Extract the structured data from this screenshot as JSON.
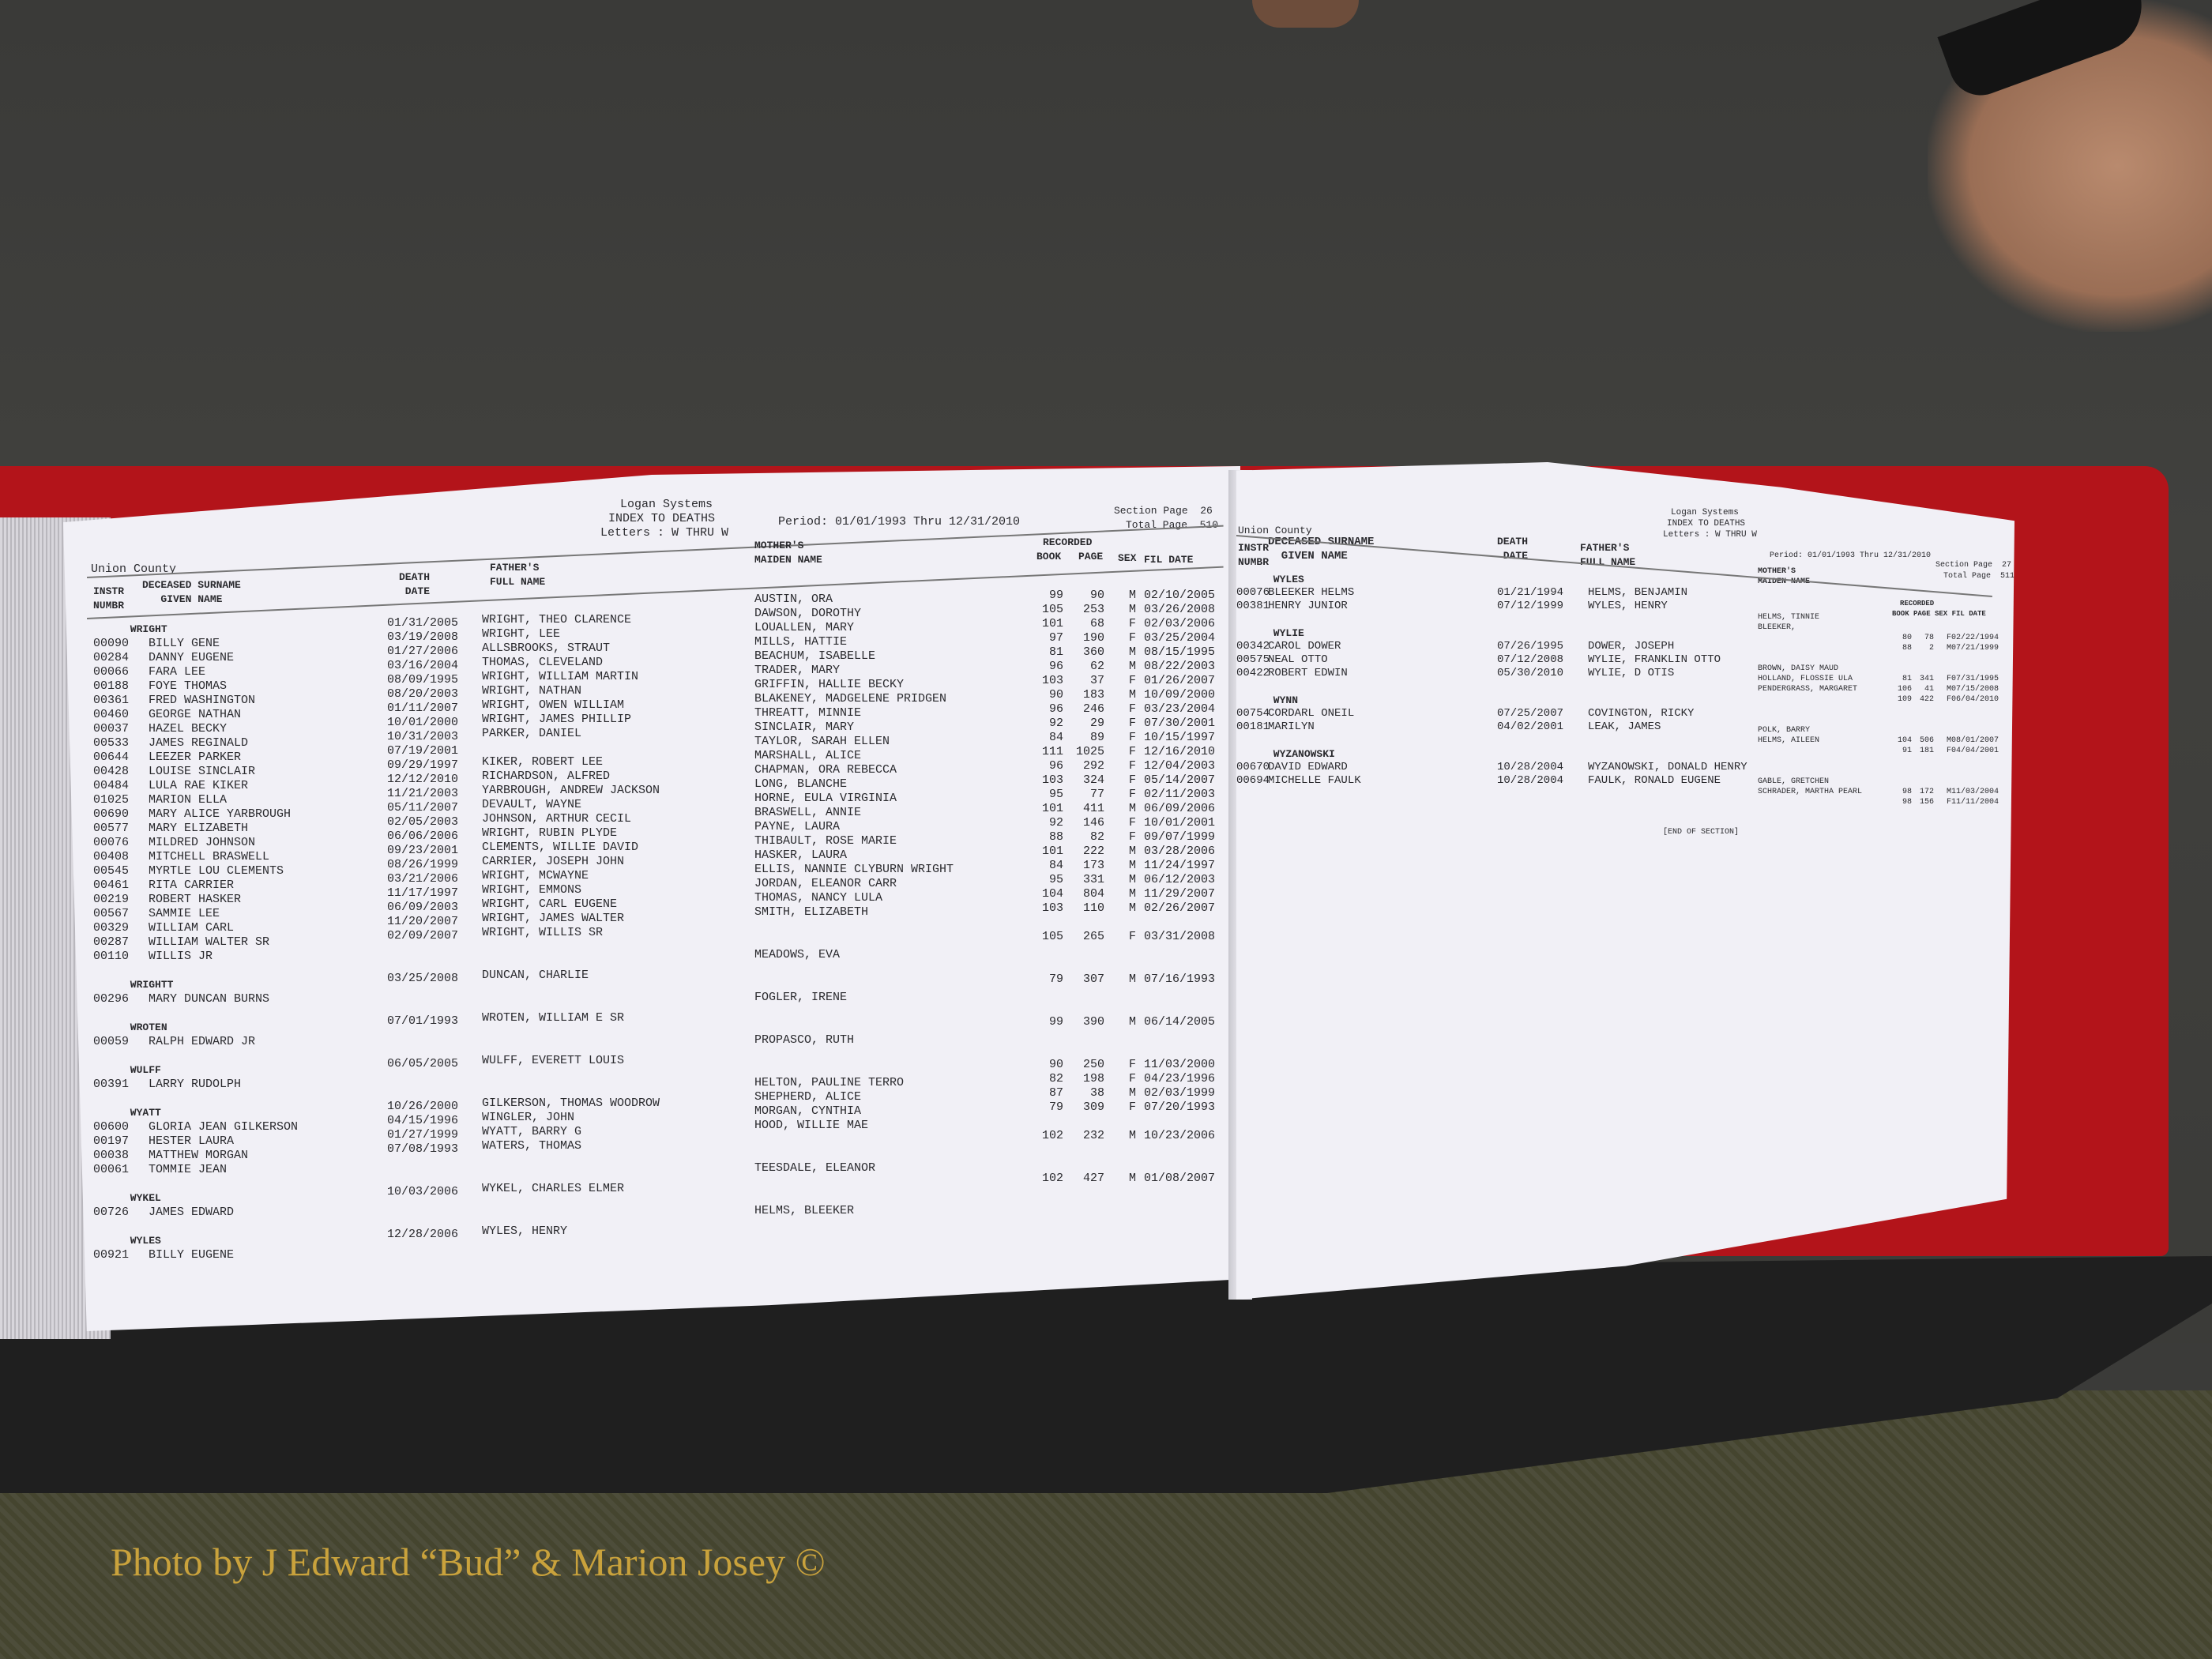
{
  "colors": {
    "binder": "#b3141a",
    "paper": "#f1f0f6",
    "caption": "#c9a23c"
  },
  "caption": "Photo by J Edward “Bud” & Marion Josey ©",
  "left_page": {
    "county": "Union County",
    "system": "Logan Systems",
    "title": "INDEX TO DEATHS",
    "letters": "Letters : W THRU W",
    "period": "Period: 01/01/1993 Thru 12/31/2010",
    "section_page": "Section Page  26",
    "total_page": "Total Page  510",
    "headers": {
      "instr": "INSTR\nNUMBR",
      "surname": "DECEASED SURNAME\n   GIVEN NAME",
      "death": "DEATH\n DATE",
      "father": "FATHER'S\nFULL NAME",
      "mother": "MOTHER'S\nMAIDEN NAME",
      "recorded": "RECORDED",
      "book": "BOOK",
      "page": "PAGE",
      "sex": "SEX",
      "fil_date": "FIL DATE"
    },
    "entries": [
      {
        "surname": "WRIGHT"
      },
      {
        "instr": "00090",
        "name": "BILLY GENE"
      },
      {
        "instr": "00284",
        "name": "DANNY EUGENE"
      },
      {
        "instr": "00066",
        "name": "FARA LEE"
      },
      {
        "instr": "00188",
        "name": "FOYE THOMAS"
      },
      {
        "instr": "00361",
        "name": "FRED WASHINGTON"
      },
      {
        "instr": "00460",
        "name": "GEORGE NATHAN"
      },
      {
        "instr": "00037",
        "name": "HAZEL BECKY"
      },
      {
        "instr": "00533",
        "name": "JAMES REGINALD"
      },
      {
        "instr": "00644",
        "name": "LEEZER PARKER"
      },
      {
        "instr": "00428",
        "name": "LOUISE SINCLAIR"
      },
      {
        "instr": "00484",
        "name": "LULA RAE KIKER"
      },
      {
        "instr": "01025",
        "name": "MARION ELLA"
      },
      {
        "instr": "00690",
        "name": "MARY ALICE YARBROUGH"
      },
      {
        "instr": "00577",
        "name": "MARY ELIZABETH"
      },
      {
        "instr": "00076",
        "name": "MILDRED JOHNSON"
      },
      {
        "instr": "00408",
        "name": "MITCHELL BRASWELL"
      },
      {
        "instr": "00545",
        "name": "MYRTLE LOU CLEMENTS"
      },
      {
        "instr": "00461",
        "name": "RITA CARRIER"
      },
      {
        "instr": "00219",
        "name": "ROBERT HASKER"
      },
      {
        "instr": "00567",
        "name": "SAMMIE LEE"
      },
      {
        "instr": "00329",
        "name": "WILLIAM CARL"
      },
      {
        "instr": "00287",
        "name": "WILLIAM WALTER SR"
      },
      {
        "instr": "00110",
        "name": "WILLIS JR"
      },
      {},
      {
        "surname": "WRIGHTT"
      },
      {
        "instr": "00296",
        "name": "MARY DUNCAN BURNS"
      },
      {},
      {
        "surname": "WROTEN"
      },
      {
        "instr": "00059",
        "name": "RALPH EDWARD JR"
      },
      {},
      {
        "surname": "WULFF"
      },
      {
        "instr": "00391",
        "name": "LARRY RUDOLPH"
      },
      {},
      {
        "surname": "WYATT"
      },
      {
        "instr": "00600",
        "name": "GLORIA JEAN GILKERSON"
      },
      {
        "instr": "00197",
        "name": "HESTER LAURA"
      },
      {
        "instr": "00038",
        "name": "MATTHEW MORGAN"
      },
      {
        "instr": "00061",
        "name": "TOMMIE JEAN"
      },
      {},
      {
        "surname": "WYKEL"
      },
      {
        "instr": "00726",
        "name": "JAMES EDWARD"
      },
      {},
      {
        "surname": "WYLES"
      },
      {
        "instr": "00921",
        "name": "BILLY EUGENE"
      }
    ],
    "death_dates": [
      "01/31/2005",
      "03/19/2008",
      "01/27/2006",
      "03/16/2004",
      "08/09/1995",
      "08/20/2003",
      "01/11/2007",
      "10/01/2000",
      "10/31/2003",
      "07/19/2001",
      "09/29/1997",
      "12/12/2010",
      "11/21/2003",
      "05/11/2007",
      "02/05/2003",
      "06/06/2006",
      "09/23/2001",
      "08/26/1999",
      "03/21/2006",
      "11/17/1997",
      "06/09/2003",
      "11/20/2007",
      "02/09/2007",
      "",
      "",
      "03/25/2008",
      "",
      "",
      "07/01/1993",
      "",
      "",
      "06/05/2005",
      "",
      "",
      "10/26/2000",
      "04/15/1996",
      "01/27/1999",
      "07/08/1993",
      "",
      "",
      "10/03/2006",
      "",
      "",
      "12/28/2006"
    ],
    "fathers": [
      "WRIGHT, THEO CLARENCE",
      "WRIGHT, LEE",
      "ALLSBROOKS, STRAUT",
      "THOMAS, CLEVELAND",
      "WRIGHT, WILLIAM MARTIN",
      "WRIGHT, NATHAN",
      "WRIGHT, OWEN WILLIAM",
      "WRIGHT, JAMES PHILLIP",
      "PARKER, DANIEL",
      "",
      "KIKER, ROBERT LEE",
      "RICHARDSON, ALFRED",
      "YARBROUGH, ANDREW JACKSON",
      "DEVAULT, WAYNE",
      "JOHNSON, ARTHUR CECIL",
      "WRIGHT, RUBIN PLYDE",
      "CLEMENTS, WILLIE DAVID",
      "CARRIER, JOSEPH JOHN",
      "WRIGHT, MCWAYNE",
      "WRIGHT, EMMONS",
      "WRIGHT, CARL EUGENE",
      "WRIGHT, JAMES WALTER",
      "WRIGHT, WILLIS SR",
      "",
      "",
      "DUNCAN, CHARLIE",
      "",
      "",
      "WROTEN, WILLIAM E SR",
      "",
      "",
      "WULFF, EVERETT LOUIS",
      "",
      "",
      "GILKERSON, THOMAS WOODROW",
      "WINGLER, JOHN",
      "WYATT, BARRY G",
      "WATERS, THOMAS",
      "",
      "",
      "WYKEL, CHARLES ELMER",
      "",
      "",
      "WYLES, HENRY"
    ],
    "mothers": [
      "AUSTIN, ORA",
      "DAWSON, DOROTHY",
      "LOUALLEN, MARY",
      "MILLS, HATTIE",
      "BEACHUM, ISABELLE",
      "TRADER, MARY",
      "GRIFFIN, HALLIE BECKY",
      "BLAKENEY, MADGELENE PRIDGEN",
      "THREATT, MINNIE",
      "SINCLAIR, MARY",
      "TAYLOR, SARAH ELLEN",
      "MARSHALL, ALICE",
      "CHAPMAN, ORA REBECCA",
      "LONG, BLANCHE",
      "HORNE, EULA VIRGINIA",
      "BRASWELL, ANNIE",
      "PAYNE, LAURA",
      "THIBAULT, ROSE MARIE",
      "HASKER, LAURA",
      "ELLIS, NANNIE CLYBURN WRIGHT",
      "JORDAN, ELEANOR CARR",
      "THOMAS, NANCY LULA",
      "SMITH, ELIZABETH",
      "",
      "",
      "MEADOWS, EVA",
      "",
      "",
      "FOGLER, IRENE",
      "",
      "",
      "PROPASCO, RUTH",
      "",
      "",
      "HELTON, PAULINE TERRO",
      "SHEPHERD, ALICE",
      "MORGAN, CYNTHIA",
      "HOOD, WILLIE MAE",
      "",
      "",
      "TEESDALE, ELEANOR",
      "",
      "",
      "HELMS, BLEEKER"
    ],
    "recorded": [
      {
        "book": "99",
        "page": "90",
        "sex": "M",
        "date": "02/10/2005"
      },
      {
        "book": "105",
        "page": "253",
        "sex": "M",
        "date": "03/26/2008"
      },
      {
        "book": "101",
        "page": "68",
        "sex": "F",
        "date": "02/03/2006"
      },
      {
        "book": "97",
        "page": "190",
        "sex": "F",
        "date": "03/25/2004"
      },
      {
        "book": "81",
        "page": "360",
        "sex": "M",
        "date": "08/15/1995"
      },
      {
        "book": "96",
        "page": "62",
        "sex": "M",
        "date": "08/22/2003"
      },
      {
        "book": "103",
        "page": "37",
        "sex": "F",
        "date": "01/26/2007"
      },
      {
        "book": "90",
        "page": "183",
        "sex": "M",
        "date": "10/09/2000"
      },
      {
        "book": "96",
        "page": "246",
        "sex": "F",
        "date": "03/23/2004"
      },
      {
        "book": "92",
        "page": "29",
        "sex": "F",
        "date": "07/30/2001"
      },
      {
        "book": "84",
        "page": "89",
        "sex": "F",
        "date": "10/15/1997"
      },
      {
        "book": "111",
        "page": "1025",
        "sex": "F",
        "date": "12/16/2010"
      },
      {
        "book": "96",
        "page": "292",
        "sex": "F",
        "date": "12/04/2003"
      },
      {
        "book": "103",
        "page": "324",
        "sex": "F",
        "date": "05/14/2007"
      },
      {
        "book": "95",
        "page": "77",
        "sex": "F",
        "date": "02/11/2003"
      },
      {
        "book": "101",
        "page": "411",
        "sex": "M",
        "date": "06/09/2006"
      },
      {
        "book": "92",
        "page": "146",
        "sex": "F",
        "date": "10/01/2001"
      },
      {
        "book": "88",
        "page": "82",
        "sex": "F",
        "date": "09/07/1999"
      },
      {
        "book": "101",
        "page": "222",
        "sex": "M",
        "date": "03/28/2006"
      },
      {
        "book": "84",
        "page": "173",
        "sex": "M",
        "date": "11/24/1997"
      },
      {
        "book": "95",
        "page": "331",
        "sex": "M",
        "date": "06/12/2003"
      },
      {
        "book": "104",
        "page": "804",
        "sex": "M",
        "date": "11/29/2007"
      },
      {
        "book": "103",
        "page": "110",
        "sex": "M",
        "date": "02/26/2007"
      },
      {},
      {
        "book": "105",
        "page": "265",
        "sex": "F",
        "date": "03/31/2008"
      },
      {},
      {},
      {
        "book": "79",
        "page": "307",
        "sex": "M",
        "date": "07/16/1993"
      },
      {},
      {},
      {
        "book": "99",
        "page": "390",
        "sex": "M",
        "date": "06/14/2005"
      },
      {},
      {},
      {
        "book": "90",
        "page": "250",
        "sex": "F",
        "date": "11/03/2000"
      },
      {
        "book": "82",
        "page": "198",
        "sex": "F",
        "date": "04/23/1996"
      },
      {
        "book": "87",
        "page": "38",
        "sex": "M",
        "date": "02/03/1999"
      },
      {
        "book": "79",
        "page": "309",
        "sex": "F",
        "date": "07/20/1993"
      },
      {},
      {
        "book": "102",
        "page": "232",
        "sex": "M",
        "date": "10/23/2006"
      },
      {},
      {},
      {
        "book": "102",
        "page": "427",
        "sex": "M",
        "date": "01/08/2007"
      }
    ]
  },
  "right_page": {
    "county": "Union County",
    "system": "Logan Systems",
    "title": "INDEX TO DEATHS",
    "letters": "Letters : W THRU W",
    "period": "Period: 01/01/1993 Thru 12/31/2010",
    "section_page": "Section Page  27",
    "total_page": "Total Page  511",
    "headers": {
      "instr": "INSTR\nNUMBR",
      "surname": "DECEASED SURNAME\n  GIVEN NAME",
      "death": "DEATH\n DATE",
      "father": "FATHER'S\nFULL NAME",
      "mother": "MOTHER'S\nMAIDEN NAME",
      "recorded": "RECORDED",
      "book_page_sex_date": "BOOK PAGE SEX FIL DATE"
    },
    "entries": [
      {
        "surname": "WYLES"
      },
      {
        "instr": "00076",
        "name": "BLEEKER HELMS",
        "death": "01/21/1994",
        "father": "HELMS, BENJAMIN"
      },
      {
        "instr": "00381",
        "name": "HENRY JUNIOR",
        "death": "07/12/1999",
        "father": "WYLES, HENRY"
      },
      {},
      {
        "surname": "WYLIE"
      },
      {
        "instr": "00342",
        "name": "CAROL DOWER",
        "death": "07/26/1995",
        "father": "DOWER, JOSEPH"
      },
      {
        "instr": "00575",
        "name": "NEAL OTTO",
        "death": "07/12/2008",
        "father": "WYLIE, FRANKLIN OTTO"
      },
      {
        "instr": "00422",
        "name": "ROBERT EDWIN",
        "death": "05/30/2010",
        "father": "WYLIE, D OTIS"
      },
      {},
      {
        "surname": "WYNN"
      },
      {
        "instr": "00754",
        "name": "CORDARL ONEIL",
        "death": "07/25/2007",
        "father": "COVINGTON, RICKY"
      },
      {
        "instr": "00181",
        "name": "MARILYN",
        "death": "04/02/2001",
        "father": "LEAK, JAMES"
      },
      {},
      {
        "surname": "WYZANOWSKI"
      },
      {
        "instr": "00670",
        "name": "DAVID EDWARD",
        "death": "10/28/2004",
        "father": "WYZANOWSKI, DONALD HENRY"
      },
      {
        "instr": "00694",
        "name": "MICHELLE FAULK",
        "death": "10/28/2004",
        "father": "FAULK, RONALD EUGENE"
      }
    ],
    "mothers": [
      "HELMS, TINNIE",
      "BLEEKER,",
      "",
      "",
      "",
      "BROWN, DAISY MAUD",
      "HOLLAND, FLOSSIE ULA",
      "PENDERGRASS, MARGARET",
      "",
      "",
      "",
      "POLK, BARRY",
      "HELMS, AILEEN",
      "",
      "",
      "",
      "GABLE, GRETCHEN",
      "SCHRADER, MARTHA PEARL"
    ],
    "recorded": [
      {},
      {},
      {
        "book": "80",
        "page": "78",
        "sex": "F",
        "date": "02/22/1994"
      },
      {
        "book": "88",
        "page": "2",
        "sex": "M",
        "date": "07/21/1999"
      },
      {},
      {},
      {
        "book": "81",
        "page": "341",
        "sex": "F",
        "date": "07/31/1995"
      },
      {
        "book": "106",
        "page": "41",
        "sex": "M",
        "date": "07/15/2008"
      },
      {
        "book": "109",
        "page": "422",
        "sex": "F",
        "date": "06/04/2010"
      },
      {},
      {},
      {},
      {
        "book": "104",
        "page": "506",
        "sex": "M",
        "date": "08/01/2007"
      },
      {
        "book": "91",
        "page": "181",
        "sex": "F",
        "date": "04/04/2001"
      },
      {},
      {},
      {},
      {
        "book": "98",
        "page": "172",
        "sex": "M",
        "date": "11/03/2004"
      },
      {
        "book": "98",
        "page": "156",
        "sex": "F",
        "date": "11/11/2004"
      }
    ],
    "end_label": "[END OF SECTION]"
  }
}
